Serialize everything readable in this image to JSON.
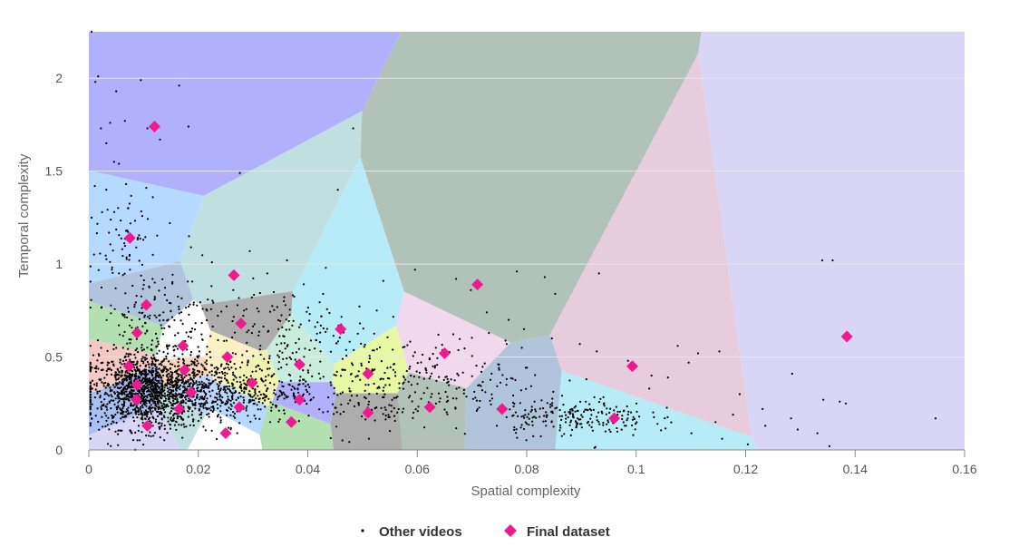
{
  "chart_data": {
    "type": "scatter",
    "title": "",
    "xlabel": "Spatial complexity",
    "ylabel": "Temporal complexity",
    "xlim": [
      0,
      0.16
    ],
    "ylim": [
      0,
      2.25
    ],
    "x_ticks": [
      "0",
      "0.02",
      "0.04",
      "0.06",
      "0.08",
      "0.1",
      "0.12",
      "0.14",
      "0.16"
    ],
    "y_ticks": [
      "0",
      "0.5",
      "1",
      "1.5",
      "2"
    ],
    "grid": "horizontal",
    "legend": {
      "placement": "bottom-center",
      "entries": [
        "Other videos",
        "Final dataset"
      ]
    },
    "background_regions": "Voronoi cells around each Final dataset point, shaded in pastel colors",
    "series": [
      {
        "name": "Other videos",
        "marker": "small black dot",
        "color": "#000000",
        "approx_count": 2700,
        "points": [
          [
            0.0005,
            2.25
          ],
          [
            0.0017,
            2.01
          ],
          [
            0.0012,
            1.98
          ],
          [
            0.005,
            1.93
          ],
          [
            0.0095,
            1.99
          ],
          [
            0.0165,
            1.96
          ],
          [
            0.0022,
            1.73
          ],
          [
            0.0039,
            1.76
          ],
          [
            0.0066,
            1.77
          ],
          [
            0.0107,
            1.73
          ],
          [
            0.013,
            1.67
          ],
          [
            0.0182,
            1.74
          ],
          [
            0.0483,
            1.73
          ],
          [
            0.0032,
            1.65
          ],
          [
            0.0046,
            1.55
          ],
          [
            0.0055,
            1.54
          ],
          [
            0.0276,
            1.49
          ],
          [
            0.0011,
            1.42
          ],
          [
            0.0068,
            1.43
          ],
          [
            0.0105,
            1.41
          ],
          [
            0.0117,
            1.36
          ],
          [
            0.0455,
            1.4
          ],
          [
            0.0005,
            1.25
          ],
          [
            0.0072,
            1.3
          ],
          [
            0.0148,
            1.22
          ],
          [
            0.0183,
            1.15
          ],
          [
            0.0061,
            1.08
          ],
          [
            0.0117,
            1.05
          ],
          [
            0.0075,
            0.97
          ],
          [
            0.0055,
            0.95
          ],
          [
            0.0225,
            1.01
          ],
          [
            0.0294,
            1.07
          ],
          [
            0.0362,
            1.02
          ],
          [
            0.0326,
            0.95
          ],
          [
            0.0433,
            0.98
          ],
          [
            0.0538,
            0.91
          ],
          [
            0.0596,
            0.97
          ],
          [
            0.0671,
            0.92
          ],
          [
            0.0698,
            0.86
          ],
          [
            0.0782,
            0.96
          ],
          [
            0.0833,
            0.93
          ],
          [
            0.0852,
            0.84
          ],
          [
            0.0932,
            0.95
          ],
          [
            0.0727,
            0.74
          ],
          [
            0.0767,
            0.7
          ],
          [
            0.0795,
            0.65
          ],
          [
            0.0846,
            0.6
          ],
          [
            0.0897,
            0.57
          ],
          [
            0.0928,
            0.53
          ],
          [
            0.0985,
            0.48
          ],
          [
            0.1028,
            0.4
          ],
          [
            0.1076,
            0.56
          ],
          [
            0.1113,
            0.52
          ],
          [
            0.1152,
            0.53
          ],
          [
            0.1096,
            0.47
          ],
          [
            0.1058,
            0.39
          ],
          [
            0.1024,
            0.33
          ],
          [
            0.0909,
            0.38
          ],
          [
            0.0951,
            0.2
          ],
          [
            0.0983,
            0.16
          ],
          [
            0.1039,
            0.14
          ],
          [
            0.1101,
            0.09
          ],
          [
            0.1157,
            0.06
          ],
          [
            0.1204,
            0.03
          ],
          [
            0.1177,
            0.19
          ],
          [
            0.1231,
            0.22
          ],
          [
            0.1283,
            0.17
          ],
          [
            0.1295,
            0.11
          ],
          [
            0.1331,
            0.09
          ],
          [
            0.1353,
            0.02
          ],
          [
            0.1342,
            0.27
          ],
          [
            0.1372,
            0.26
          ],
          [
            0.1383,
            0.25
          ],
          [
            0.134,
            1.02
          ],
          [
            0.1359,
            1.02
          ],
          [
            0.1285,
            0.41
          ],
          [
            0.1236,
            0.13
          ],
          [
            0.1547,
            0.17
          ],
          [
            0.1189,
            0.3
          ],
          [
            0.1145,
            0.15
          ]
        ],
        "dense_clusters": [
          {
            "center": [
              0.011,
              0.32
            ],
            "spread": [
              0.01,
              0.17
            ],
            "count": 1350
          },
          {
            "center": [
              0.025,
              0.32
            ],
            "spread": [
              0.013,
              0.15
            ],
            "count": 520
          },
          {
            "center": [
              0.012,
              0.72
            ],
            "spread": [
              0.01,
              0.2
            ],
            "count": 160
          },
          {
            "center": [
              0.035,
              0.62
            ],
            "spread": [
              0.015,
              0.22
            ],
            "count": 170
          },
          {
            "center": [
              0.05,
              0.32
            ],
            "spread": [
              0.013,
              0.2
            ],
            "count": 180
          },
          {
            "center": [
              0.068,
              0.4
            ],
            "spread": [
              0.014,
              0.17
            ],
            "count": 130
          },
          {
            "center": [
              0.088,
              0.18
            ],
            "spread": [
              0.013,
              0.09
            ],
            "count": 220
          },
          {
            "center": [
              0.006,
              1.12
            ],
            "spread": [
              0.005,
              0.25
            ],
            "count": 60
          }
        ]
      },
      {
        "name": "Final dataset",
        "marker": "diamond",
        "color": "#ee1b8f",
        "points": [
          [
            0.012,
            1.74
          ],
          [
            0.0075,
            1.14
          ],
          [
            0.0265,
            0.94
          ],
          [
            0.071,
            0.89
          ],
          [
            0.0105,
            0.78
          ],
          [
            0.0278,
            0.68
          ],
          [
            0.0088,
            0.63
          ],
          [
            0.046,
            0.65
          ],
          [
            0.1385,
            0.61
          ],
          [
            0.0172,
            0.56
          ],
          [
            0.065,
            0.52
          ],
          [
            0.0253,
            0.5
          ],
          [
            0.0993,
            0.45
          ],
          [
            0.0073,
            0.45
          ],
          [
            0.0385,
            0.46
          ],
          [
            0.0175,
            0.43
          ],
          [
            0.051,
            0.41
          ],
          [
            0.0088,
            0.35
          ],
          [
            0.0298,
            0.36
          ],
          [
            0.0187,
            0.31
          ],
          [
            0.0087,
            0.27
          ],
          [
            0.0385,
            0.27
          ],
          [
            0.0275,
            0.23
          ],
          [
            0.0165,
            0.22
          ],
          [
            0.0623,
            0.23
          ],
          [
            0.0755,
            0.22
          ],
          [
            0.051,
            0.2
          ],
          [
            0.037,
            0.15
          ],
          [
            0.096,
            0.17
          ],
          [
            0.0107,
            0.13
          ],
          [
            0.025,
            0.09
          ]
        ]
      }
    ],
    "colors": {
      "final_marker": "#ee1b8f",
      "grid": "#e6e6e6",
      "region_palette": [
        "#b0b0fd",
        "#b6daff",
        "#c0dfe0",
        "#b1c3b8",
        "#b0c5db",
        "#adadad",
        "#b2e0b0",
        "#b7ebf7",
        "#d9d5f7",
        "#ffffff",
        "#f0d9ed",
        "#fdf0c2",
        "#e7ccdd",
        "#f4c8c3",
        "#c8ecdd",
        "#f9d5bd",
        "#e8f7a3",
        "#a7b6ea",
        "#f2f2b0",
        "#bed6ff",
        "#a9c1f2"
      ]
    }
  }
}
